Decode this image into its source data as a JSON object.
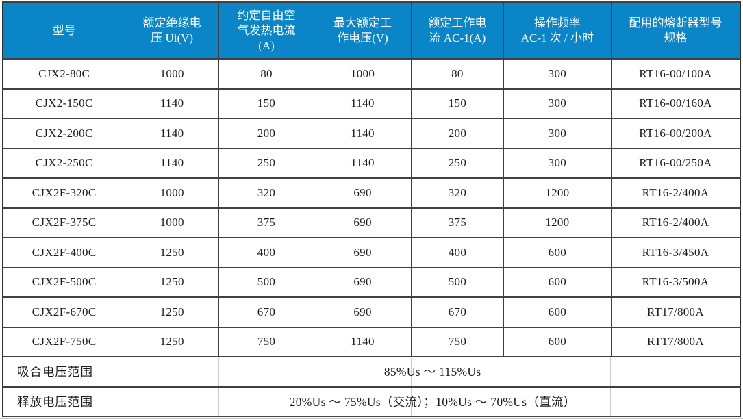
{
  "colors": {
    "header_bg": "#0a85c8",
    "header_text": "#ffffff",
    "grid_line": "#404040",
    "outer_border": "#2e2e2e",
    "body_text": "#1c1c1c",
    "faint_column_line": "#cccccc",
    "bottom_band": "#c2c2c2"
  },
  "table": {
    "columns": [
      "型号",
      "额定绝缘电\n压 Ui(V)",
      "约定自由空\n气发热电流\n(A)",
      "最大额定工\n作电压(V)",
      "额定工作电\n流 AC-1(A)",
      "操作频率\nAC-1 次 / 小时",
      "配用的熔断器型号\n规格"
    ],
    "rows": [
      [
        "CJX2-80C",
        "1000",
        "80",
        "1000",
        "80",
        "300",
        "RT16-00/100A"
      ],
      [
        "CJX2-150C",
        "1140",
        "150",
        "1140",
        "150",
        "300",
        "RT16-00/160A"
      ],
      [
        "CJX2-200C",
        "1140",
        "200",
        "1140",
        "200",
        "300",
        "RT16-00/200A"
      ],
      [
        "CJX2-250C",
        "1140",
        "250",
        "1140",
        "250",
        "300",
        "RT16-00/250A"
      ],
      [
        "CJX2F-320C",
        "1000",
        "320",
        "690",
        "320",
        "1200",
        "RT16-2/400A"
      ],
      [
        "CJX2F-375C",
        "1000",
        "375",
        "690",
        "375",
        "1200",
        "RT16-2/400A"
      ],
      [
        "CJX2F-400C",
        "1250",
        "400",
        "690",
        "400",
        "600",
        "RT16-3/450A"
      ],
      [
        "CJX2F-500C",
        "1250",
        "500",
        "690",
        "500",
        "600",
        "RT16-3/500A"
      ],
      [
        "CJX2F-670C",
        "1250",
        "670",
        "690",
        "670",
        "600",
        "RT17/800A"
      ],
      [
        "CJX2F-750C",
        "1250",
        "750",
        "1140",
        "750",
        "600",
        "RT17/800A"
      ]
    ],
    "footer_rows": [
      {
        "label": "吸合电压范围",
        "value": "85%Us ～ 115%Us"
      },
      {
        "label": "释放电压范围",
        "value": "20%Us ～ 75%Us（交流）；10%Us ～ 70%Us（直流）"
      }
    ]
  }
}
